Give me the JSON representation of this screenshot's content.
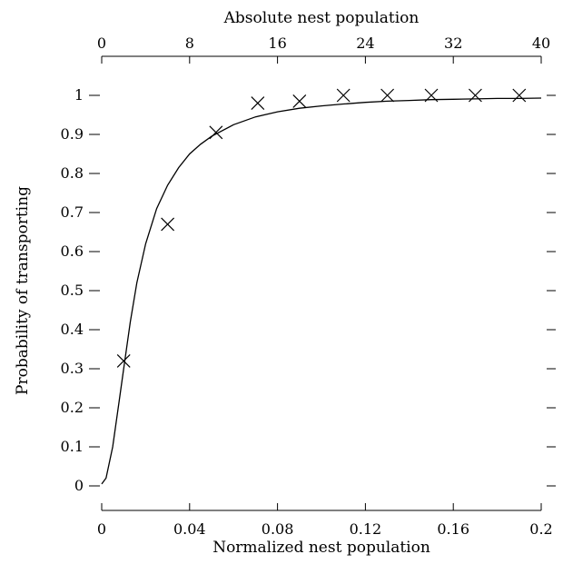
{
  "chart_data": {
    "type": "scatter",
    "xlabel": "Normalized nest population",
    "x2label": "Absolute nest population",
    "ylabel": "Probability of transporting",
    "xlim": [
      0,
      0.2
    ],
    "x2lim": [
      0,
      40
    ],
    "ylim": [
      0,
      1
    ],
    "x_ticks": [
      "0",
      "0.04",
      "0.08",
      "0.12",
      "0.16",
      "0.2"
    ],
    "x2_ticks": [
      "0",
      "8",
      "16",
      "24",
      "32",
      "40"
    ],
    "y_ticks": [
      "0",
      "0.1",
      "0.2",
      "0.3",
      "0.4",
      "0.5",
      "0.6",
      "0.7",
      "0.8",
      "0.9",
      "1"
    ],
    "grid": false,
    "series": [
      {
        "type": "scatter",
        "marker": "x",
        "x": [
          0.01,
          0.03,
          0.052,
          0.071,
          0.09,
          0.11,
          0.13,
          0.15,
          0.17,
          0.19
        ],
        "y": [
          0.32,
          0.67,
          0.905,
          0.98,
          0.985,
          1.0,
          1.0,
          1.0,
          1.0,
          1.0
        ]
      },
      {
        "type": "line",
        "x": [
          0,
          0.002,
          0.005,
          0.008,
          0.01,
          0.013,
          0.016,
          0.02,
          0.025,
          0.03,
          0.035,
          0.04,
          0.045,
          0.05,
          0.06,
          0.07,
          0.08,
          0.09,
          0.1,
          0.11,
          0.12,
          0.13,
          0.14,
          0.15,
          0.16,
          0.17,
          0.18,
          0.19,
          0.2
        ],
        "y": [
          0.005,
          0.02,
          0.1,
          0.22,
          0.3,
          0.42,
          0.52,
          0.62,
          0.71,
          0.77,
          0.815,
          0.85,
          0.875,
          0.895,
          0.925,
          0.945,
          0.958,
          0.967,
          0.973,
          0.978,
          0.982,
          0.985,
          0.987,
          0.989,
          0.99,
          0.991,
          0.992,
          0.992,
          0.993
        ]
      }
    ]
  }
}
